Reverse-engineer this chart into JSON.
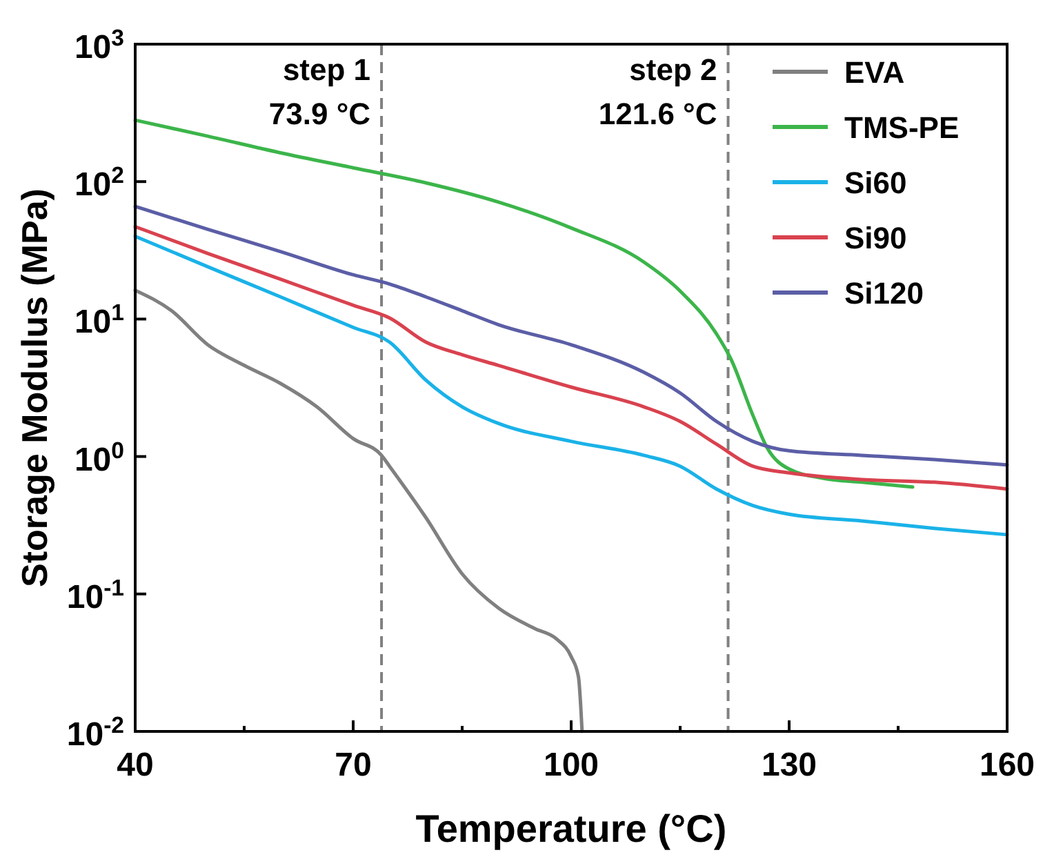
{
  "chart_data": {
    "type": "line",
    "xlabel": "Temperature (°C)",
    "ylabel": "Storage Modulus (MPa)",
    "log": "y",
    "xlim": [
      40,
      160
    ],
    "xticks": [
      40,
      70,
      100,
      130,
      160
    ],
    "ylim": [
      0.01,
      1000
    ],
    "yticks": [
      {
        "value": 0.01,
        "label": "10$^{-2}$"
      },
      {
        "value": 0.1,
        "label": "10$^{-1}$"
      },
      {
        "value": 1,
        "label": "10$^{0}$"
      },
      {
        "value": 10,
        "label": "10$^{1}$"
      },
      {
        "value": 100,
        "label": "10$^{2}$"
      },
      {
        "value": 1000,
        "label": "10$^{3}$"
      }
    ],
    "grid": false,
    "legend": "top right",
    "marker": "none",
    "line_style": "solid",
    "ref_lines": [
      {
        "axis": "x",
        "value": 73.9,
        "label": "step 1\n73.9 °C",
        "color": "#808080",
        "line_style": "dashed"
      },
      {
        "axis": "x",
        "value": 121.6,
        "label": "step 2\n121.6 °C",
        "color": "#808080",
        "line_style": "dashed"
      }
    ],
    "series": [
      {
        "name": "EVA",
        "color": "#808080",
        "x": [
          40,
          45,
          50,
          55,
          60,
          65,
          70,
          73.9,
          75,
          80,
          85,
          90,
          95,
          98,
          100,
          101,
          101.5
        ],
        "values": [
          16.2,
          11.5,
          6.5,
          4.6,
          3.4,
          2.3,
          1.35,
          1.02,
          0.85,
          0.36,
          0.14,
          0.079,
          0.056,
          0.047,
          0.035,
          0.025,
          0.01
        ]
      },
      {
        "name": "TMS-PE",
        "color": "#3cb54a",
        "x": [
          40,
          50,
          60,
          70,
          80,
          90,
          100,
          110,
          115,
          120,
          122,
          125,
          127,
          130,
          135,
          140,
          147
        ],
        "values": [
          280,
          214,
          162,
          126,
          98,
          71,
          46,
          26,
          16,
          7.8,
          5.1,
          2,
          1.15,
          0.81,
          0.69,
          0.65,
          0.6
        ]
      },
      {
        "name": "Si60",
        "color": "#1ab2e8",
        "x": [
          40,
          50,
          60,
          70,
          75,
          80,
          85,
          90,
          100,
          110,
          115,
          120,
          125,
          130,
          140,
          150,
          160
        ],
        "values": [
          40,
          24,
          14.5,
          8.7,
          6.8,
          3.6,
          2.3,
          1.74,
          1.29,
          1.02,
          0.85,
          0.58,
          0.44,
          0.38,
          0.34,
          0.3,
          0.27
        ]
      },
      {
        "name": "Si90",
        "color": "#d9424f",
        "x": [
          40,
          50,
          60,
          70,
          75,
          80,
          85,
          90,
          100,
          110,
          115,
          120,
          125,
          130,
          140,
          150,
          160
        ],
        "values": [
          47,
          30,
          19.5,
          12.6,
          10.2,
          6.8,
          5.5,
          4.6,
          3.2,
          2.3,
          1.8,
          1.23,
          0.85,
          0.76,
          0.68,
          0.65,
          0.58
        ]
      },
      {
        "name": "Si120",
        "color": "#5b5ea6",
        "x": [
          40,
          50,
          60,
          70,
          75,
          80,
          85,
          90,
          100,
          110,
          115,
          120,
          125,
          130,
          140,
          150,
          160
        ],
        "values": [
          66,
          45,
          31,
          21,
          18,
          14.5,
          11.5,
          9.1,
          6.5,
          4.1,
          2.9,
          1.8,
          1.29,
          1.1,
          1.02,
          0.95,
          0.87
        ]
      }
    ]
  }
}
